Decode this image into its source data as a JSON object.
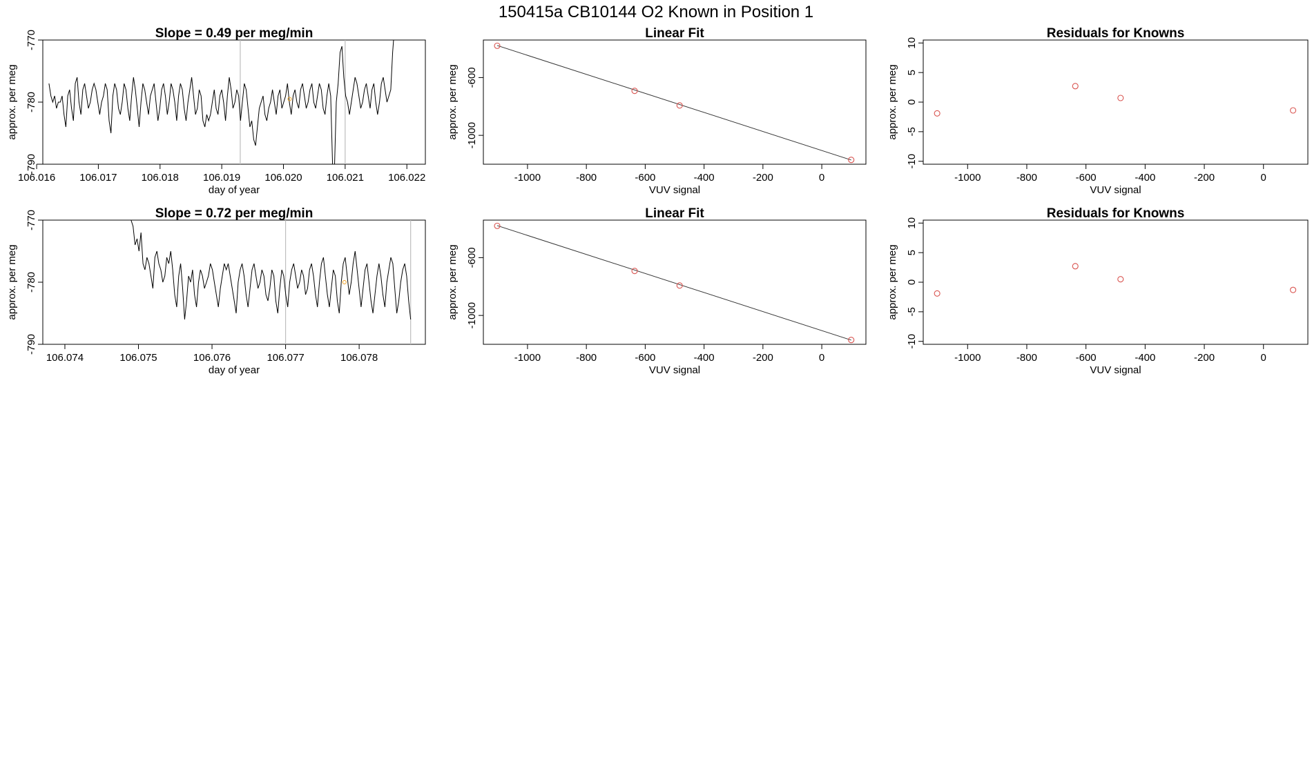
{
  "figure": {
    "title": "150415a      CB10144    O2 Known in Position  1",
    "colors": {
      "line": "#000000",
      "points": "#d9534f",
      "known": "#f0a020",
      "vline": "#bdbdbd",
      "frame": "#000000"
    }
  },
  "chart_data": [
    {
      "id": "ts1",
      "type": "line",
      "title": "Slope =  0.49  per meg/min",
      "xlabel": "day of year",
      "ylabel": "approx. per meg",
      "xlim": [
        106.0161,
        106.0223
      ],
      "ylim": [
        -790,
        -770
      ],
      "xticks": [
        106.016,
        106.017,
        106.018,
        106.019,
        106.02,
        106.021,
        106.022
      ],
      "xtick_labels": [
        "106.016",
        "106.017",
        "106.018",
        "106.019",
        "106.020",
        "106.021",
        "106.022"
      ],
      "yticks": [
        -790,
        -780,
        -770
      ],
      "ytick_labels": [
        "-790",
        "-780",
        "-770"
      ],
      "vlines": [
        106.0193,
        106.021
      ],
      "x_start": 106.0162,
      "x_end": 106.0218,
      "y": [
        -777,
        -779,
        -780,
        -779,
        -781,
        -780,
        -780,
        -779,
        -782,
        -784,
        -779,
        -778,
        -781,
        -783,
        -777,
        -776,
        -780,
        -782,
        -778,
        -777,
        -779,
        -781,
        -780,
        -778,
        -777,
        -778,
        -780,
        -782,
        -780,
        -779,
        -777,
        -778,
        -783,
        -785,
        -779,
        -777,
        -778,
        -781,
        -782,
        -780,
        -777,
        -778,
        -781,
        -783,
        -779,
        -776,
        -778,
        -781,
        -784,
        -780,
        -777,
        -778,
        -780,
        -782,
        -779,
        -778,
        -777,
        -780,
        -783,
        -781,
        -778,
        -777,
        -779,
        -782,
        -780,
        -777,
        -778,
        -780,
        -783,
        -779,
        -777,
        -778,
        -781,
        -783,
        -780,
        -778,
        -776,
        -779,
        -782,
        -781,
        -778,
        -779,
        -783,
        -784,
        -782,
        -783,
        -782,
        -780,
        -778,
        -781,
        -782,
        -779,
        -778,
        -780,
        -783,
        -779,
        -776,
        -778,
        -781,
        -780,
        -778,
        -779,
        -783,
        -780,
        -777,
        -778,
        -781,
        -784,
        -783,
        -786,
        -787,
        -784,
        -781,
        -780,
        -779,
        -782,
        -783,
        -781,
        -780,
        -778,
        -780,
        -782,
        -779,
        -778,
        -781,
        -780,
        -779,
        -777,
        -780,
        -782,
        -779,
        -778,
        -780,
        -781,
        -778,
        -777,
        -779,
        -781,
        -780,
        -778,
        -777,
        -780,
        -781,
        -779,
        -777,
        -778,
        -781,
        -782,
        -779,
        -777,
        -779,
        -790,
        -791,
        -780,
        -777,
        -772,
        -771,
        -776,
        -779,
        -780,
        -782,
        -780,
        -778,
        -776,
        -777,
        -779,
        -781,
        -780,
        -778,
        -777,
        -779,
        -781,
        -778,
        -777,
        -780,
        -782,
        -780,
        -777,
        -776,
        -778,
        -780,
        -779,
        -778,
        -772,
        -768
      ],
      "known_point": [
        106.0201,
        -779.5
      ]
    },
    {
      "id": "fit1",
      "type": "scatter",
      "title": "Linear Fit",
      "xlabel": "VUV signal",
      "ylabel": "approx. per meg",
      "xlim": [
        -1150,
        150
      ],
      "ylim": [
        -1200,
        -340
      ],
      "xticks": [
        -1000,
        -800,
        -600,
        -400,
        -200,
        0
      ],
      "xtick_labels": [
        "-1000",
        "-800",
        "-600",
        "-400",
        "-200",
        "0"
      ],
      "yticks": [
        -1000,
        -600
      ],
      "ytick_labels": [
        "-1000",
        "-600"
      ],
      "points": [
        [
          -1103,
          -380
        ],
        [
          -636,
          -692
        ],
        [
          -483,
          -793
        ],
        [
          100,
          -1170
        ]
      ],
      "fit_line": [
        [
          -1103,
          -378
        ],
        [
          100,
          -1171
        ]
      ]
    },
    {
      "id": "res1",
      "type": "scatter",
      "title": "Residuals for Knowns",
      "xlabel": "VUV signal",
      "ylabel": "approx. per meg",
      "xlim": [
        -1150,
        150
      ],
      "ylim": [
        -10.5,
        10.5
      ],
      "xticks": [
        -1000,
        -800,
        -600,
        -400,
        -200,
        0
      ],
      "xtick_labels": [
        "-1000",
        "-800",
        "-600",
        "-400",
        "-200",
        "0"
      ],
      "yticks": [
        -10,
        -5,
        0,
        5,
        10
      ],
      "ytick_labels": [
        "-10",
        "-5",
        "0",
        "5",
        "10"
      ],
      "points": [
        [
          -1103,
          -1.9
        ],
        [
          -636,
          2.7
        ],
        [
          -483,
          0.7
        ],
        [
          100,
          -1.4
        ]
      ]
    },
    {
      "id": "ts2",
      "type": "line",
      "title": "Slope =  0.72  per meg/min",
      "xlabel": "day of year",
      "ylabel": "approx. per meg",
      "xlim": [
        106.0737,
        106.0789
      ],
      "ylim": [
        -790,
        -770
      ],
      "xticks": [
        106.074,
        106.075,
        106.076,
        106.077,
        106.078
      ],
      "xtick_labels": [
        "106.074",
        "106.075",
        "106.076",
        "106.077",
        "106.078"
      ],
      "yticks": [
        -790,
        -780,
        -770
      ],
      "ytick_labels": [
        "-790",
        "-780",
        "-770"
      ],
      "vlines": [
        106.077,
        106.0787
      ],
      "x_start": 106.0749,
      "x_end": 106.0787,
      "y": [
        -770,
        -771,
        -774,
        -773,
        -775,
        -772,
        -777,
        -778,
        -776,
        -777,
        -779,
        -781,
        -776,
        -775,
        -777,
        -778,
        -780,
        -779,
        -776,
        -777,
        -775,
        -778,
        -782,
        -784,
        -779,
        -777,
        -781,
        -786,
        -783,
        -779,
        -780,
        -778,
        -782,
        -784,
        -780,
        -778,
        -779,
        -781,
        -780,
        -779,
        -777,
        -778,
        -780,
        -782,
        -784,
        -781,
        -779,
        -777,
        -778,
        -777,
        -779,
        -781,
        -783,
        -785,
        -780,
        -778,
        -777,
        -779,
        -782,
        -784,
        -781,
        -778,
        -777,
        -779,
        -781,
        -780,
        -778,
        -779,
        -782,
        -783,
        -781,
        -778,
        -779,
        -783,
        -785,
        -781,
        -778,
        -779,
        -782,
        -784,
        -780,
        -778,
        -777,
        -779,
        -781,
        -780,
        -778,
        -779,
        -782,
        -781,
        -778,
        -777,
        -779,
        -782,
        -784,
        -780,
        -777,
        -776,
        -779,
        -782,
        -784,
        -781,
        -778,
        -779,
        -783,
        -785,
        -780,
        -777,
        -776,
        -779,
        -782,
        -780,
        -777,
        -775,
        -778,
        -781,
        -784,
        -781,
        -778,
        -777,
        -780,
        -783,
        -785,
        -782,
        -779,
        -777,
        -779,
        -782,
        -784,
        -780,
        -778,
        -776,
        -777,
        -781,
        -785,
        -783,
        -780,
        -778,
        -777,
        -779,
        -783,
        -786
      ],
      "known_point": [
        106.0778,
        -780
      ]
    },
    {
      "id": "fit2",
      "type": "scatter",
      "title": "Linear Fit",
      "xlabel": "VUV signal",
      "ylabel": "approx. per meg",
      "xlim": [
        -1150,
        150
      ],
      "ylim": [
        -1200,
        -340
      ],
      "xticks": [
        -1000,
        -800,
        -600,
        -400,
        -200,
        0
      ],
      "xtick_labels": [
        "-1000",
        "-800",
        "-600",
        "-400",
        "-200",
        "0"
      ],
      "yticks": [
        -1000,
        -600
      ],
      "ytick_labels": [
        "-1000",
        "-600"
      ],
      "points": [
        [
          -1103,
          -380
        ],
        [
          -636,
          -692
        ],
        [
          -483,
          -793
        ],
        [
          100,
          -1170
        ]
      ],
      "fit_line": [
        [
          -1103,
          -378
        ],
        [
          100,
          -1171
        ]
      ]
    },
    {
      "id": "res2",
      "type": "scatter",
      "title": "Residuals for Knowns",
      "xlabel": "VUV signal",
      "ylabel": "approx. per meg",
      "xlim": [
        -1150,
        150
      ],
      "ylim": [
        -10.5,
        10.5
      ],
      "xticks": [
        -1000,
        -800,
        -600,
        -400,
        -200,
        0
      ],
      "xtick_labels": [
        "-1000",
        "-800",
        "-600",
        "-400",
        "-200",
        "0"
      ],
      "yticks": [
        -10,
        -5,
        0,
        5,
        10
      ],
      "ytick_labels": [
        "-10",
        "-5",
        "0",
        "5",
        "10"
      ],
      "points": [
        [
          -1103,
          -1.9
        ],
        [
          -636,
          2.7
        ],
        [
          -483,
          0.5
        ],
        [
          100,
          -1.3
        ]
      ]
    }
  ]
}
